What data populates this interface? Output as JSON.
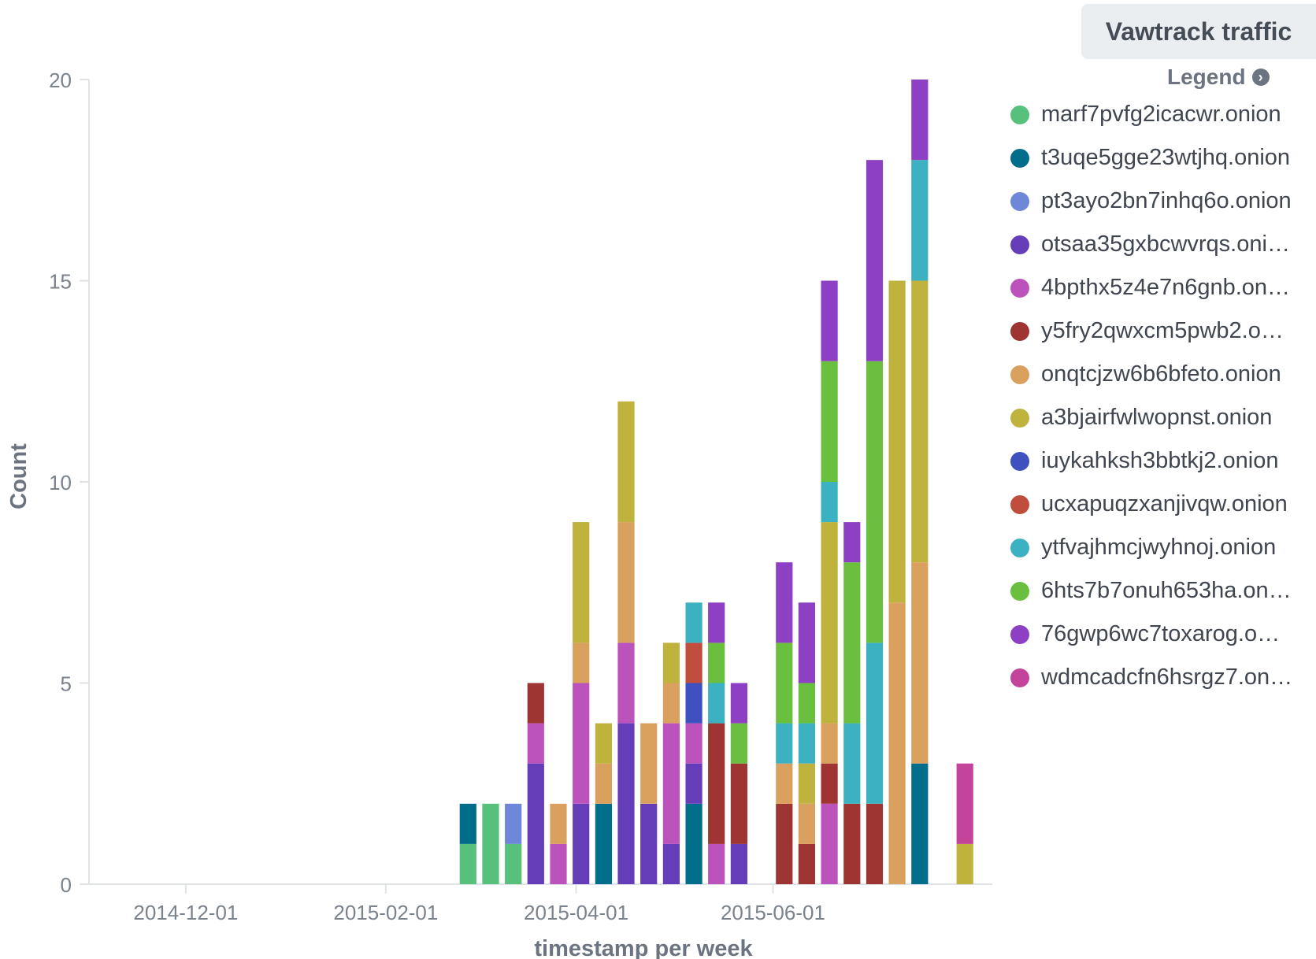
{
  "panel": {
    "title": "Vawtrack traffic",
    "legend_label": "Legend"
  },
  "chart_data": {
    "type": "bar",
    "stacked": true,
    "title": "",
    "xlabel": "timestamp per week",
    "ylabel": "Count",
    "ylim": [
      0,
      20
    ],
    "y_ticks": [
      0,
      5,
      10,
      15,
      20
    ],
    "x_ticks": [
      "2014-12-01",
      "2015-02-01",
      "2015-04-01",
      "2015-06-01"
    ],
    "x_range": [
      "2014-11-01",
      "2015-08-08"
    ],
    "grid": false,
    "legend_position": "right",
    "series": [
      {
        "name": "marf7pvfg2icacwr.onion",
        "color": "#57c17b"
      },
      {
        "name": "t3uqe5gge23wtjhq.onion",
        "color": "#006e8a"
      },
      {
        "name": "pt3ayo2bn7inhq6o.onion",
        "color": "#6f87d8"
      },
      {
        "name": "otsaa35gxbcwvrqs.oni…",
        "color": "#663db8"
      },
      {
        "name": "4bpthx5z4e7n6gnb.on…",
        "color": "#bc52bc"
      },
      {
        "name": "y5fry2qwxcm5pwb2.o…",
        "color": "#9e3533"
      },
      {
        "name": "onqtcjzw6b6bfeto.onion",
        "color": "#daa05d"
      },
      {
        "name": "a3bjairfwlwopnst.onion",
        "color": "#bfb23d"
      },
      {
        "name": "iuykahksh3bbtkj2.onion",
        "color": "#3f51bf"
      },
      {
        "name": "ucxapuqzxanjivqw.onion",
        "color": "#c14e3c"
      },
      {
        "name": "ytfvajhmcjwyhnoj.onion",
        "color": "#3bb1c1"
      },
      {
        "name": "6hts7b7onuh653ha.on…",
        "color": "#6bbf3e"
      },
      {
        "name": "76gwp6wc7toxarog.o…",
        "color": "#8d40c4"
      },
      {
        "name": "wdmcadcfn6hsrgz7.on…",
        "color": "#c5449b"
      }
    ],
    "bars": [
      {
        "week": "2015-02-23",
        "segments": [
          [
            "marf7pvfg2icacwr.onion",
            1
          ],
          [
            "t3uqe5gge23wtjhq.onion",
            1
          ]
        ]
      },
      {
        "week": "2015-03-02",
        "segments": [
          [
            "marf7pvfg2icacwr.onion",
            2
          ]
        ]
      },
      {
        "week": "2015-03-09",
        "segments": [
          [
            "marf7pvfg2icacwr.onion",
            1
          ],
          [
            "pt3ayo2bn7inhq6o.onion",
            1
          ]
        ]
      },
      {
        "week": "2015-03-16",
        "segments": [
          [
            "otsaa35gxbcwvrqs.oni…",
            3
          ],
          [
            "4bpthx5z4e7n6gnb.on…",
            1
          ],
          [
            "y5fry2qwxcm5pwb2.o…",
            1
          ]
        ]
      },
      {
        "week": "2015-03-23",
        "segments": [
          [
            "4bpthx5z4e7n6gnb.on…",
            1
          ],
          [
            "onqtcjzw6b6bfeto.onion",
            1
          ]
        ]
      },
      {
        "week": "2015-03-30",
        "segments": [
          [
            "otsaa35gxbcwvrqs.oni…",
            2
          ],
          [
            "4bpthx5z4e7n6gnb.on…",
            3
          ],
          [
            "onqtcjzw6b6bfeto.onion",
            1
          ],
          [
            "a3bjairfwlwopnst.onion",
            3
          ]
        ]
      },
      {
        "week": "2015-04-06",
        "segments": [
          [
            "t3uqe5gge23wtjhq.onion",
            2
          ],
          [
            "onqtcjzw6b6bfeto.onion",
            1
          ],
          [
            "a3bjairfwlwopnst.onion",
            1
          ]
        ]
      },
      {
        "week": "2015-04-13",
        "segments": [
          [
            "otsaa35gxbcwvrqs.oni…",
            4
          ],
          [
            "4bpthx5z4e7n6gnb.on…",
            2
          ],
          [
            "onqtcjzw6b6bfeto.onion",
            3
          ],
          [
            "a3bjairfwlwopnst.onion",
            3
          ]
        ]
      },
      {
        "week": "2015-04-20",
        "segments": [
          [
            "otsaa35gxbcwvrqs.oni…",
            2
          ],
          [
            "onqtcjzw6b6bfeto.onion",
            2
          ]
        ]
      },
      {
        "week": "2015-04-27",
        "segments": [
          [
            "otsaa35gxbcwvrqs.oni…",
            1
          ],
          [
            "4bpthx5z4e7n6gnb.on…",
            3
          ],
          [
            "onqtcjzw6b6bfeto.onion",
            1
          ],
          [
            "a3bjairfwlwopnst.onion",
            1
          ]
        ]
      },
      {
        "week": "2015-05-04",
        "segments": [
          [
            "t3uqe5gge23wtjhq.onion",
            2
          ],
          [
            "otsaa35gxbcwvrqs.oni…",
            1
          ],
          [
            "4bpthx5z4e7n6gnb.on…",
            1
          ],
          [
            "iuykahksh3bbtkj2.onion",
            1
          ],
          [
            "ucxapuqzxanjivqw.onion",
            1
          ],
          [
            "ytfvajhmcjwyhnoj.onion",
            1
          ]
        ]
      },
      {
        "week": "2015-05-11",
        "segments": [
          [
            "4bpthx5z4e7n6gnb.on…",
            1
          ],
          [
            "y5fry2qwxcm5pwb2.o…",
            3
          ],
          [
            "ytfvajhmcjwyhnoj.onion",
            1
          ],
          [
            "6hts7b7onuh653ha.on…",
            1
          ],
          [
            "76gwp6wc7toxarog.o…",
            1
          ]
        ]
      },
      {
        "week": "2015-05-18",
        "segments": [
          [
            "otsaa35gxbcwvrqs.oni…",
            1
          ],
          [
            "y5fry2qwxcm5pwb2.o…",
            2
          ],
          [
            "6hts7b7onuh653ha.on…",
            1
          ],
          [
            "76gwp6wc7toxarog.o…",
            1
          ]
        ]
      },
      {
        "week": "2015-06-01",
        "segments": [
          [
            "y5fry2qwxcm5pwb2.o…",
            2
          ],
          [
            "onqtcjzw6b6bfeto.onion",
            1
          ],
          [
            "ytfvajhmcjwyhnoj.onion",
            1
          ],
          [
            "6hts7b7onuh653ha.on…",
            2
          ],
          [
            "76gwp6wc7toxarog.o…",
            2
          ]
        ]
      },
      {
        "week": "2015-06-08",
        "segments": [
          [
            "y5fry2qwxcm5pwb2.o…",
            1
          ],
          [
            "onqtcjzw6b6bfeto.onion",
            1
          ],
          [
            "a3bjairfwlwopnst.onion",
            1
          ],
          [
            "ytfvajhmcjwyhnoj.onion",
            1
          ],
          [
            "6hts7b7onuh653ha.on…",
            1
          ],
          [
            "76gwp6wc7toxarog.o…",
            2
          ]
        ]
      },
      {
        "week": "2015-06-15",
        "segments": [
          [
            "4bpthx5z4e7n6gnb.on…",
            2
          ],
          [
            "y5fry2qwxcm5pwb2.o…",
            1
          ],
          [
            "onqtcjzw6b6bfeto.onion",
            1
          ],
          [
            "a3bjairfwlwopnst.onion",
            5
          ],
          [
            "ytfvajhmcjwyhnoj.onion",
            1
          ],
          [
            "6hts7b7onuh653ha.on…",
            3
          ],
          [
            "76gwp6wc7toxarog.o…",
            2
          ]
        ]
      },
      {
        "week": "2015-06-22",
        "segments": [
          [
            "y5fry2qwxcm5pwb2.o…",
            2
          ],
          [
            "ytfvajhmcjwyhnoj.onion",
            2
          ],
          [
            "6hts7b7onuh653ha.on…",
            4
          ],
          [
            "76gwp6wc7toxarog.o…",
            1
          ]
        ]
      },
      {
        "week": "2015-06-29",
        "segments": [
          [
            "y5fry2qwxcm5pwb2.o…",
            2
          ],
          [
            "ytfvajhmcjwyhnoj.onion",
            4
          ],
          [
            "6hts7b7onuh653ha.on…",
            7
          ],
          [
            "76gwp6wc7toxarog.o…",
            5
          ]
        ]
      },
      {
        "week": "2015-07-06",
        "segments": [
          [
            "onqtcjzw6b6bfeto.onion",
            7
          ],
          [
            "a3bjairfwlwopnst.onion",
            8
          ]
        ]
      },
      {
        "week": "2015-07-13",
        "segments": [
          [
            "t3uqe5gge23wtjhq.onion",
            3
          ],
          [
            "onqtcjzw6b6bfeto.onion",
            5
          ],
          [
            "a3bjairfwlwopnst.onion",
            7
          ],
          [
            "ytfvajhmcjwyhnoj.onion",
            3
          ],
          [
            "76gwp6wc7toxarog.o…",
            2
          ]
        ]
      },
      {
        "week": "2015-07-27",
        "segments": [
          [
            "a3bjairfwlwopnst.onion",
            1
          ],
          [
            "wdmcadcfn6hsrgz7.on…",
            2
          ]
        ]
      }
    ]
  }
}
